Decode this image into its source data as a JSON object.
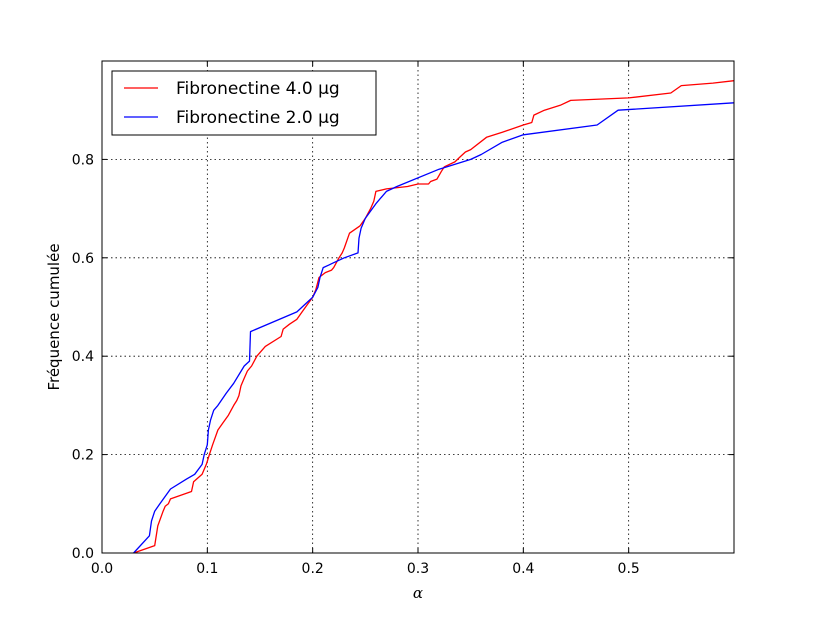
{
  "chart_data": {
    "type": "line",
    "title": "",
    "xlabel": "α",
    "ylabel": "Fréquence cumulée",
    "xlim": [
      0.0,
      0.6
    ],
    "ylim": [
      0.0,
      1.0
    ],
    "xticks": [
      "0.0",
      "0.1",
      "0.2",
      "0.3",
      "0.4",
      "0.5"
    ],
    "yticks": [
      "0.0",
      "0.2",
      "0.4",
      "0.6",
      "0.8"
    ],
    "grid": true,
    "legend_position": "top-left",
    "series": [
      {
        "name": "Fibronectine 4.0 µg",
        "color": "#ff0000",
        "x": [
          0.03,
          0.05,
          0.053,
          0.058,
          0.06,
          0.063,
          0.065,
          0.085,
          0.087,
          0.095,
          0.099,
          0.102,
          0.105,
          0.11,
          0.115,
          0.12,
          0.125,
          0.128,
          0.13,
          0.132,
          0.135,
          0.138,
          0.14,
          0.142,
          0.147,
          0.155,
          0.17,
          0.172,
          0.178,
          0.185,
          0.19,
          0.195,
          0.2,
          0.203,
          0.206,
          0.212,
          0.218,
          0.22,
          0.225,
          0.228,
          0.23,
          0.235,
          0.245,
          0.25,
          0.255,
          0.258,
          0.26,
          0.27,
          0.29,
          0.3,
          0.31,
          0.312,
          0.318,
          0.322,
          0.325,
          0.335,
          0.34,
          0.345,
          0.35,
          0.365,
          0.38,
          0.4,
          0.408,
          0.41,
          0.42,
          0.435,
          0.445,
          0.5,
          0.54,
          0.55,
          0.58,
          0.6
        ],
        "y": [
          0.0,
          0.015,
          0.055,
          0.085,
          0.095,
          0.1,
          0.11,
          0.125,
          0.145,
          0.16,
          0.18,
          0.2,
          0.22,
          0.25,
          0.265,
          0.28,
          0.3,
          0.31,
          0.32,
          0.34,
          0.355,
          0.37,
          0.375,
          0.38,
          0.4,
          0.42,
          0.44,
          0.455,
          0.465,
          0.475,
          0.49,
          0.505,
          0.52,
          0.535,
          0.56,
          0.57,
          0.575,
          0.58,
          0.6,
          0.61,
          0.62,
          0.65,
          0.665,
          0.68,
          0.7,
          0.715,
          0.735,
          0.74,
          0.745,
          0.75,
          0.75,
          0.755,
          0.76,
          0.775,
          0.785,
          0.795,
          0.805,
          0.815,
          0.82,
          0.845,
          0.855,
          0.87,
          0.875,
          0.89,
          0.9,
          0.91,
          0.92,
          0.925,
          0.935,
          0.95,
          0.955,
          0.96
        ]
      },
      {
        "name": "Fibronectine 2.0 µg",
        "color": "#0000ff",
        "x": [
          0.03,
          0.045,
          0.047,
          0.05,
          0.055,
          0.065,
          0.08,
          0.088,
          0.095,
          0.097,
          0.1,
          0.101,
          0.103,
          0.106,
          0.11,
          0.118,
          0.125,
          0.135,
          0.14,
          0.141,
          0.185,
          0.195,
          0.2,
          0.205,
          0.207,
          0.21,
          0.215,
          0.22,
          0.23,
          0.243,
          0.244,
          0.246,
          0.25,
          0.26,
          0.27,
          0.28,
          0.32,
          0.35,
          0.36,
          0.38,
          0.4,
          0.47,
          0.49,
          0.6
        ],
        "y": [
          0.0,
          0.035,
          0.065,
          0.085,
          0.1,
          0.13,
          0.15,
          0.16,
          0.18,
          0.2,
          0.22,
          0.25,
          0.27,
          0.29,
          0.3,
          0.325,
          0.345,
          0.38,
          0.39,
          0.45,
          0.49,
          0.51,
          0.52,
          0.54,
          0.56,
          0.58,
          0.585,
          0.59,
          0.6,
          0.61,
          0.64,
          0.66,
          0.68,
          0.71,
          0.735,
          0.745,
          0.78,
          0.8,
          0.81,
          0.835,
          0.85,
          0.87,
          0.9,
          0.915
        ]
      }
    ]
  }
}
